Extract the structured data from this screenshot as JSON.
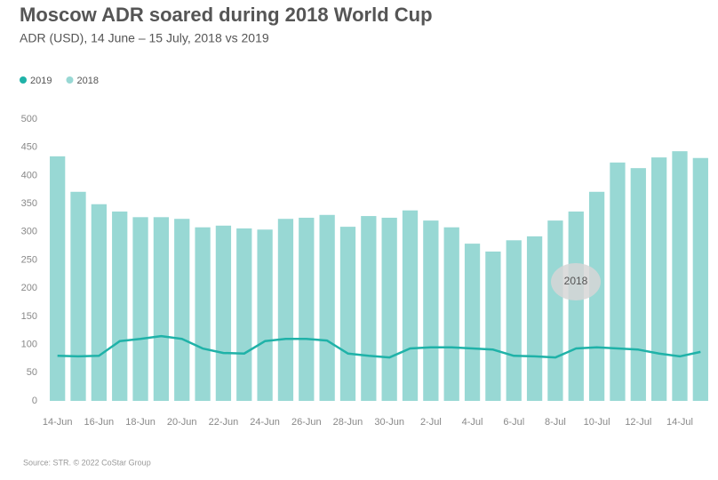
{
  "chart_data": {
    "type": "bar_line",
    "title": "Moscow ADR soared during 2018 World Cup",
    "subtitle": "ADR (USD), 14 June – 15 July, 2018 vs 2019",
    "source": "Source: STR. © 2022 CoStar Group",
    "annotation": "2018",
    "categories": [
      "14-Jun",
      null,
      "16-Jun",
      null,
      "18-Jun",
      null,
      "20-Jun",
      null,
      "22-Jun",
      null,
      "24-Jun",
      null,
      "26-Jun",
      null,
      "28-Jun",
      null,
      "30-Jun",
      null,
      "2-Jul",
      null,
      "4-Jul",
      null,
      "6-Jul",
      null,
      "8-Jul",
      null,
      "10-Jul",
      null,
      "12-Jul",
      null,
      "14-Jul",
      null
    ],
    "series": [
      {
        "name": "2019",
        "color": "#1fb2a8",
        "kind": "line",
        "values": [
          80,
          79,
          80,
          106,
          110,
          115,
          110,
          93,
          85,
          84,
          106,
          110,
          110,
          107,
          84,
          80,
          77,
          93,
          95,
          95,
          93,
          91,
          80,
          79,
          77,
          93,
          95,
          93,
          91,
          84,
          79,
          87
        ]
      },
      {
        "name": "2018",
        "color": "#98d8d4",
        "kind": "bar",
        "values": [
          434,
          371,
          349,
          336,
          326,
          326,
          323,
          308,
          311,
          306,
          304,
          323,
          325,
          330,
          309,
          328,
          325,
          338,
          320,
          308,
          279,
          265,
          285,
          292,
          320,
          336,
          371,
          423,
          413,
          432,
          443,
          431
        ]
      }
    ],
    "ylim": [
      0,
      500
    ],
    "yticks": [
      0,
      50,
      100,
      150,
      200,
      250,
      300,
      350,
      400,
      450,
      500
    ]
  }
}
